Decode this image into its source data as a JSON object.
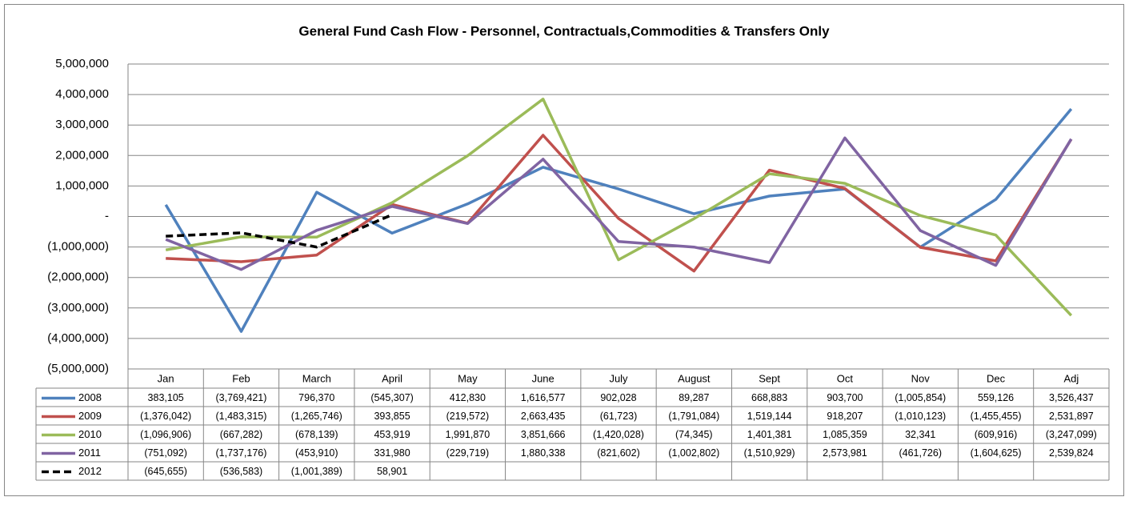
{
  "chart_data": {
    "type": "line",
    "title": "General Fund Cash Flow - Personnel, Contractuals,Commodities  & Transfers Only",
    "categories": [
      "Jan",
      "Feb",
      "March",
      "April",
      "May",
      "June",
      "July",
      "August",
      "Sept",
      "Oct",
      "Nov",
      "Dec",
      "Adj"
    ],
    "ylim": [
      -5000000,
      5000000
    ],
    "yticks": [
      {
        "value": -5000000,
        "label": "(5,000,000)"
      },
      {
        "value": -4000000,
        "label": "(4,000,000)"
      },
      {
        "value": -3000000,
        "label": "(3,000,000)"
      },
      {
        "value": -2000000,
        "label": "(2,000,000)"
      },
      {
        "value": -1000000,
        "label": "(1,000,000)"
      },
      {
        "value": 0,
        "label": "-"
      },
      {
        "value": 1000000,
        "label": "1,000,000"
      },
      {
        "value": 2000000,
        "label": "2,000,000"
      },
      {
        "value": 3000000,
        "label": "3,000,000"
      },
      {
        "value": 4000000,
        "label": "4,000,000"
      },
      {
        "value": 5000000,
        "label": "5,000,000"
      }
    ],
    "grid": true,
    "series": [
      {
        "name": "2008",
        "color": "#4f81bd",
        "line_style": "solid",
        "values": [
          383105,
          -3769421,
          796370,
          -545307,
          412830,
          1616577,
          902028,
          89287,
          668883,
          903700,
          -1005854,
          559126,
          3526437
        ],
        "value_labels": [
          "383,105",
          "(3,769,421)",
          "796,370",
          "(545,307)",
          "412,830",
          "1,616,577",
          "902,028",
          "89,287",
          "668,883",
          "903,700",
          "(1,005,854)",
          "559,126",
          "3,526,437"
        ]
      },
      {
        "name": "2009",
        "color": "#c0504d",
        "line_style": "solid",
        "values": [
          -1376042,
          -1483315,
          -1265746,
          393855,
          -219572,
          2663435,
          -61723,
          -1791084,
          1519144,
          918207,
          -1010123,
          -1455455,
          2531897
        ],
        "value_labels": [
          "(1,376,042)",
          "(1,483,315)",
          "(1,265,746)",
          "393,855",
          "(219,572)",
          "2,663,435",
          "(61,723)",
          "(1,791,084)",
          "1,519,144",
          "918,207",
          "(1,010,123)",
          "(1,455,455)",
          "2,531,897"
        ]
      },
      {
        "name": "2010",
        "color": "#9bbb59",
        "line_style": "solid",
        "values": [
          -1096906,
          -667282,
          -678139,
          453919,
          1991870,
          3851666,
          -1420028,
          -74345,
          1401381,
          1085359,
          32341,
          -609916,
          -3247099
        ],
        "value_labels": [
          "(1,096,906)",
          "(667,282)",
          "(678,139)",
          "453,919",
          "1,991,870",
          "3,851,666",
          "(1,420,028)",
          "(74,345)",
          "1,401,381",
          "1,085,359",
          "32,341",
          "(609,916)",
          "(3,247,099)"
        ]
      },
      {
        "name": "2011",
        "color": "#8064a2",
        "line_style": "solid",
        "values": [
          -751092,
          -1737176,
          -453910,
          331980,
          -229719,
          1880338,
          -821602,
          -1002802,
          -1510929,
          2573981,
          -461726,
          -1604625,
          2539824
        ],
        "value_labels": [
          "(751,092)",
          "(1,737,176)",
          "(453,910)",
          "331,980",
          "(229,719)",
          "1,880,338",
          "(821,602)",
          "(1,002,802)",
          "(1,510,929)",
          "2,573,981",
          "(461,726)",
          "(1,604,625)",
          "2,539,824"
        ]
      },
      {
        "name": "2012",
        "color": "#000000",
        "line_style": "dashed",
        "values": [
          -645655,
          -536583,
          -1001389,
          58901,
          null,
          null,
          null,
          null,
          null,
          null,
          null,
          null,
          null
        ],
        "value_labels": [
          "(645,655)",
          "(536,583)",
          "(1,001,389)",
          "58,901",
          null,
          null,
          null,
          null,
          null,
          null,
          null,
          null,
          null
        ]
      }
    ]
  }
}
